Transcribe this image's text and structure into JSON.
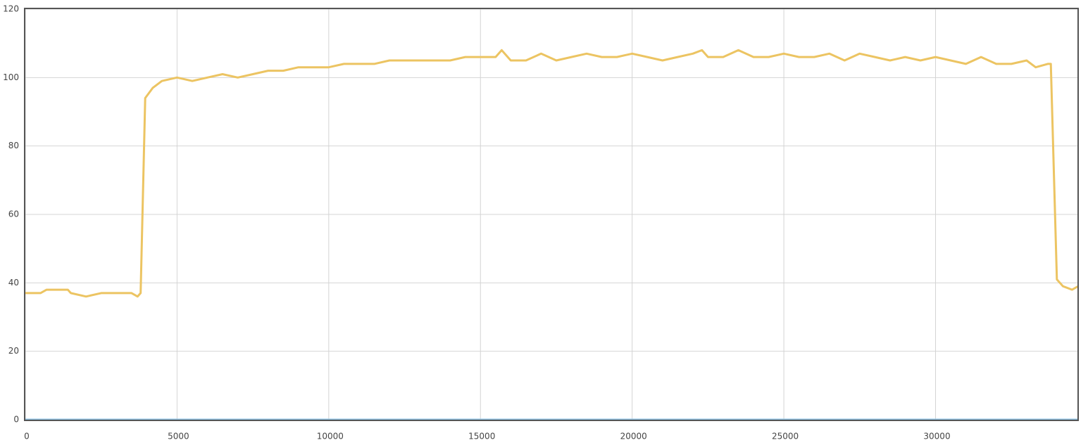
{
  "chart_data": {
    "type": "line",
    "x": [
      0,
      500,
      700,
      1400,
      1500,
      2000,
      2500,
      3000,
      3500,
      3700,
      3800,
      3950,
      4200,
      4500,
      5000,
      5500,
      6000,
      6500,
      7000,
      7500,
      8000,
      8500,
      9000,
      9500,
      10000,
      10500,
      11000,
      11500,
      12000,
      12500,
      13000,
      13500,
      14000,
      14500,
      15000,
      15500,
      15700,
      16000,
      16500,
      17000,
      17500,
      18000,
      18500,
      19000,
      19500,
      20000,
      20500,
      21000,
      21500,
      22000,
      22300,
      22500,
      23000,
      23500,
      24000,
      24500,
      25000,
      25500,
      26000,
      26500,
      27000,
      27500,
      28000,
      28500,
      29000,
      29500,
      30000,
      30500,
      31000,
      31500,
      32000,
      32500,
      33000,
      33300,
      33700,
      33800,
      34000,
      34200,
      34500,
      34700
    ],
    "series": [
      {
        "color": "#ecc462",
        "values": [
          37,
          37,
          38,
          38,
          37,
          36,
          37,
          37,
          37,
          36,
          37,
          94,
          97,
          99,
          100,
          99,
          100,
          101,
          100,
          101,
          102,
          102,
          103,
          103,
          103,
          104,
          104,
          104,
          105,
          105,
          105,
          105,
          105,
          106,
          106,
          106,
          108,
          105,
          105,
          107,
          105,
          106,
          107,
          106,
          106,
          107,
          106,
          105,
          106,
          107,
          108,
          106,
          106,
          108,
          106,
          106,
          107,
          106,
          106,
          107,
          105,
          107,
          106,
          105,
          106,
          105,
          106,
          105,
          104,
          106,
          104,
          104,
          105,
          103,
          104,
          104,
          41,
          39,
          38,
          39
        ]
      },
      {
        "color": "#8dbfe0",
        "values": [
          0,
          0,
          0,
          0,
          0,
          0,
          0,
          0,
          0,
          0,
          0,
          0,
          0,
          0,
          0,
          0,
          0,
          0,
          0,
          0,
          0,
          0,
          0,
          0,
          0,
          0,
          0,
          0,
          0,
          0,
          0,
          0,
          0,
          0,
          0,
          0,
          0,
          0,
          0,
          0,
          0,
          0,
          0,
          0,
          0,
          0,
          0,
          0,
          0,
          0,
          0,
          0,
          0,
          0,
          0,
          0,
          0,
          0,
          0,
          0,
          0,
          0,
          0,
          0,
          0,
          0,
          0,
          0,
          0,
          0,
          0,
          0,
          0,
          0,
          0,
          0,
          0,
          0,
          0,
          0
        ]
      }
    ],
    "xlim": [
      0,
      34700
    ],
    "ylim": [
      0,
      120
    ],
    "xticks": [
      0,
      5000,
      10000,
      15000,
      20000,
      25000,
      30000
    ],
    "yticks": [
      0,
      20,
      40,
      60,
      80,
      100,
      120
    ],
    "grid": true
  }
}
